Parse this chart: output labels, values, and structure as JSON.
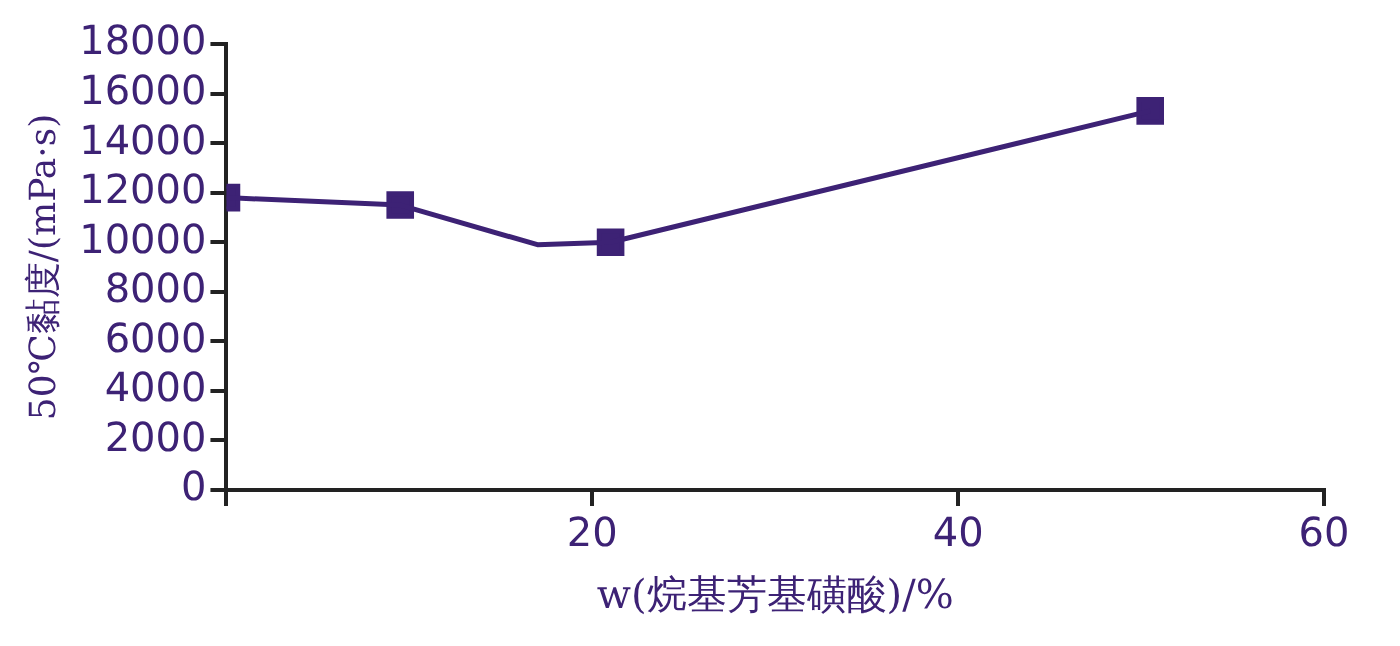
{
  "chart_data": {
    "type": "line",
    "xlabel": "w(烷基芳基磺酸)/%",
    "ylabel": "50℃黏度/(mPa·s)",
    "xlim": [
      0,
      60
    ],
    "xticks": [
      {
        "value": 0,
        "label": null
      },
      20,
      40,
      60
    ],
    "ylim": [
      0,
      18000
    ],
    "yticks": [
      0,
      2000,
      4000,
      6000,
      8000,
      10000,
      12000,
      14000,
      16000,
      18000
    ],
    "grid": false,
    "legend": false,
    "line_style": "solid",
    "series": [
      {
        "marker": "none",
        "color": "#3d2275",
        "x": [
          0,
          9.5,
          17,
          21,
          50.5
        ],
        "values": [
          11800,
          11500,
          9900,
          10000,
          15300
        ]
      },
      {
        "type": "scatter",
        "marker": "square",
        "color": "#3d2275",
        "x": [
          0,
          9.5,
          21,
          50.5
        ],
        "values": [
          11800,
          11500,
          10000,
          15300
        ]
      }
    ]
  }
}
